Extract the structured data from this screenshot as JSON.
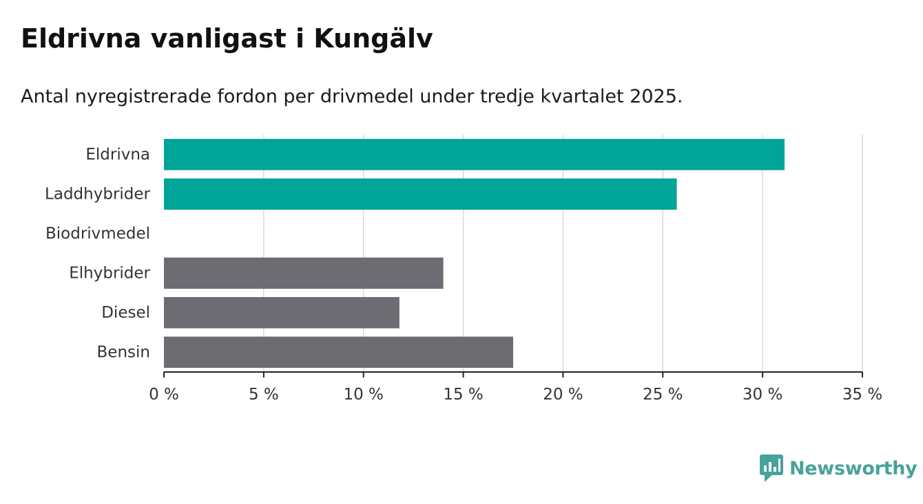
{
  "title": "Eldrivna vanligast i Kungälv",
  "subtitle": "Antal nyregistrerade fordon per drivmedel under tredje kvartalet 2025.",
  "brand": {
    "name": "Newsworthy",
    "icon": "bar-chart-speech-bubble-icon",
    "color": "#47a39a"
  },
  "chart_data": {
    "type": "bar",
    "orientation": "horizontal",
    "categories": [
      "Eldrivna",
      "Laddhybrider",
      "Biodrivmedel",
      "Elhybrider",
      "Diesel",
      "Bensin"
    ],
    "values": [
      31.1,
      25.7,
      0,
      14.0,
      11.8,
      17.5
    ],
    "colors": [
      "#00a498",
      "#00a498",
      "#00a498",
      "#6d6c72",
      "#6d6c72",
      "#6d6c72"
    ],
    "xlim": [
      0,
      35
    ],
    "xticks": [
      0,
      5,
      10,
      15,
      20,
      25,
      30,
      35
    ],
    "tick_labels": [
      "0 %",
      "5 %",
      "10 %",
      "15 %",
      "20 %",
      "25 %",
      "30 %",
      "35 %"
    ],
    "unit": "%",
    "grid": true,
    "xlabel": "",
    "ylabel": ""
  }
}
